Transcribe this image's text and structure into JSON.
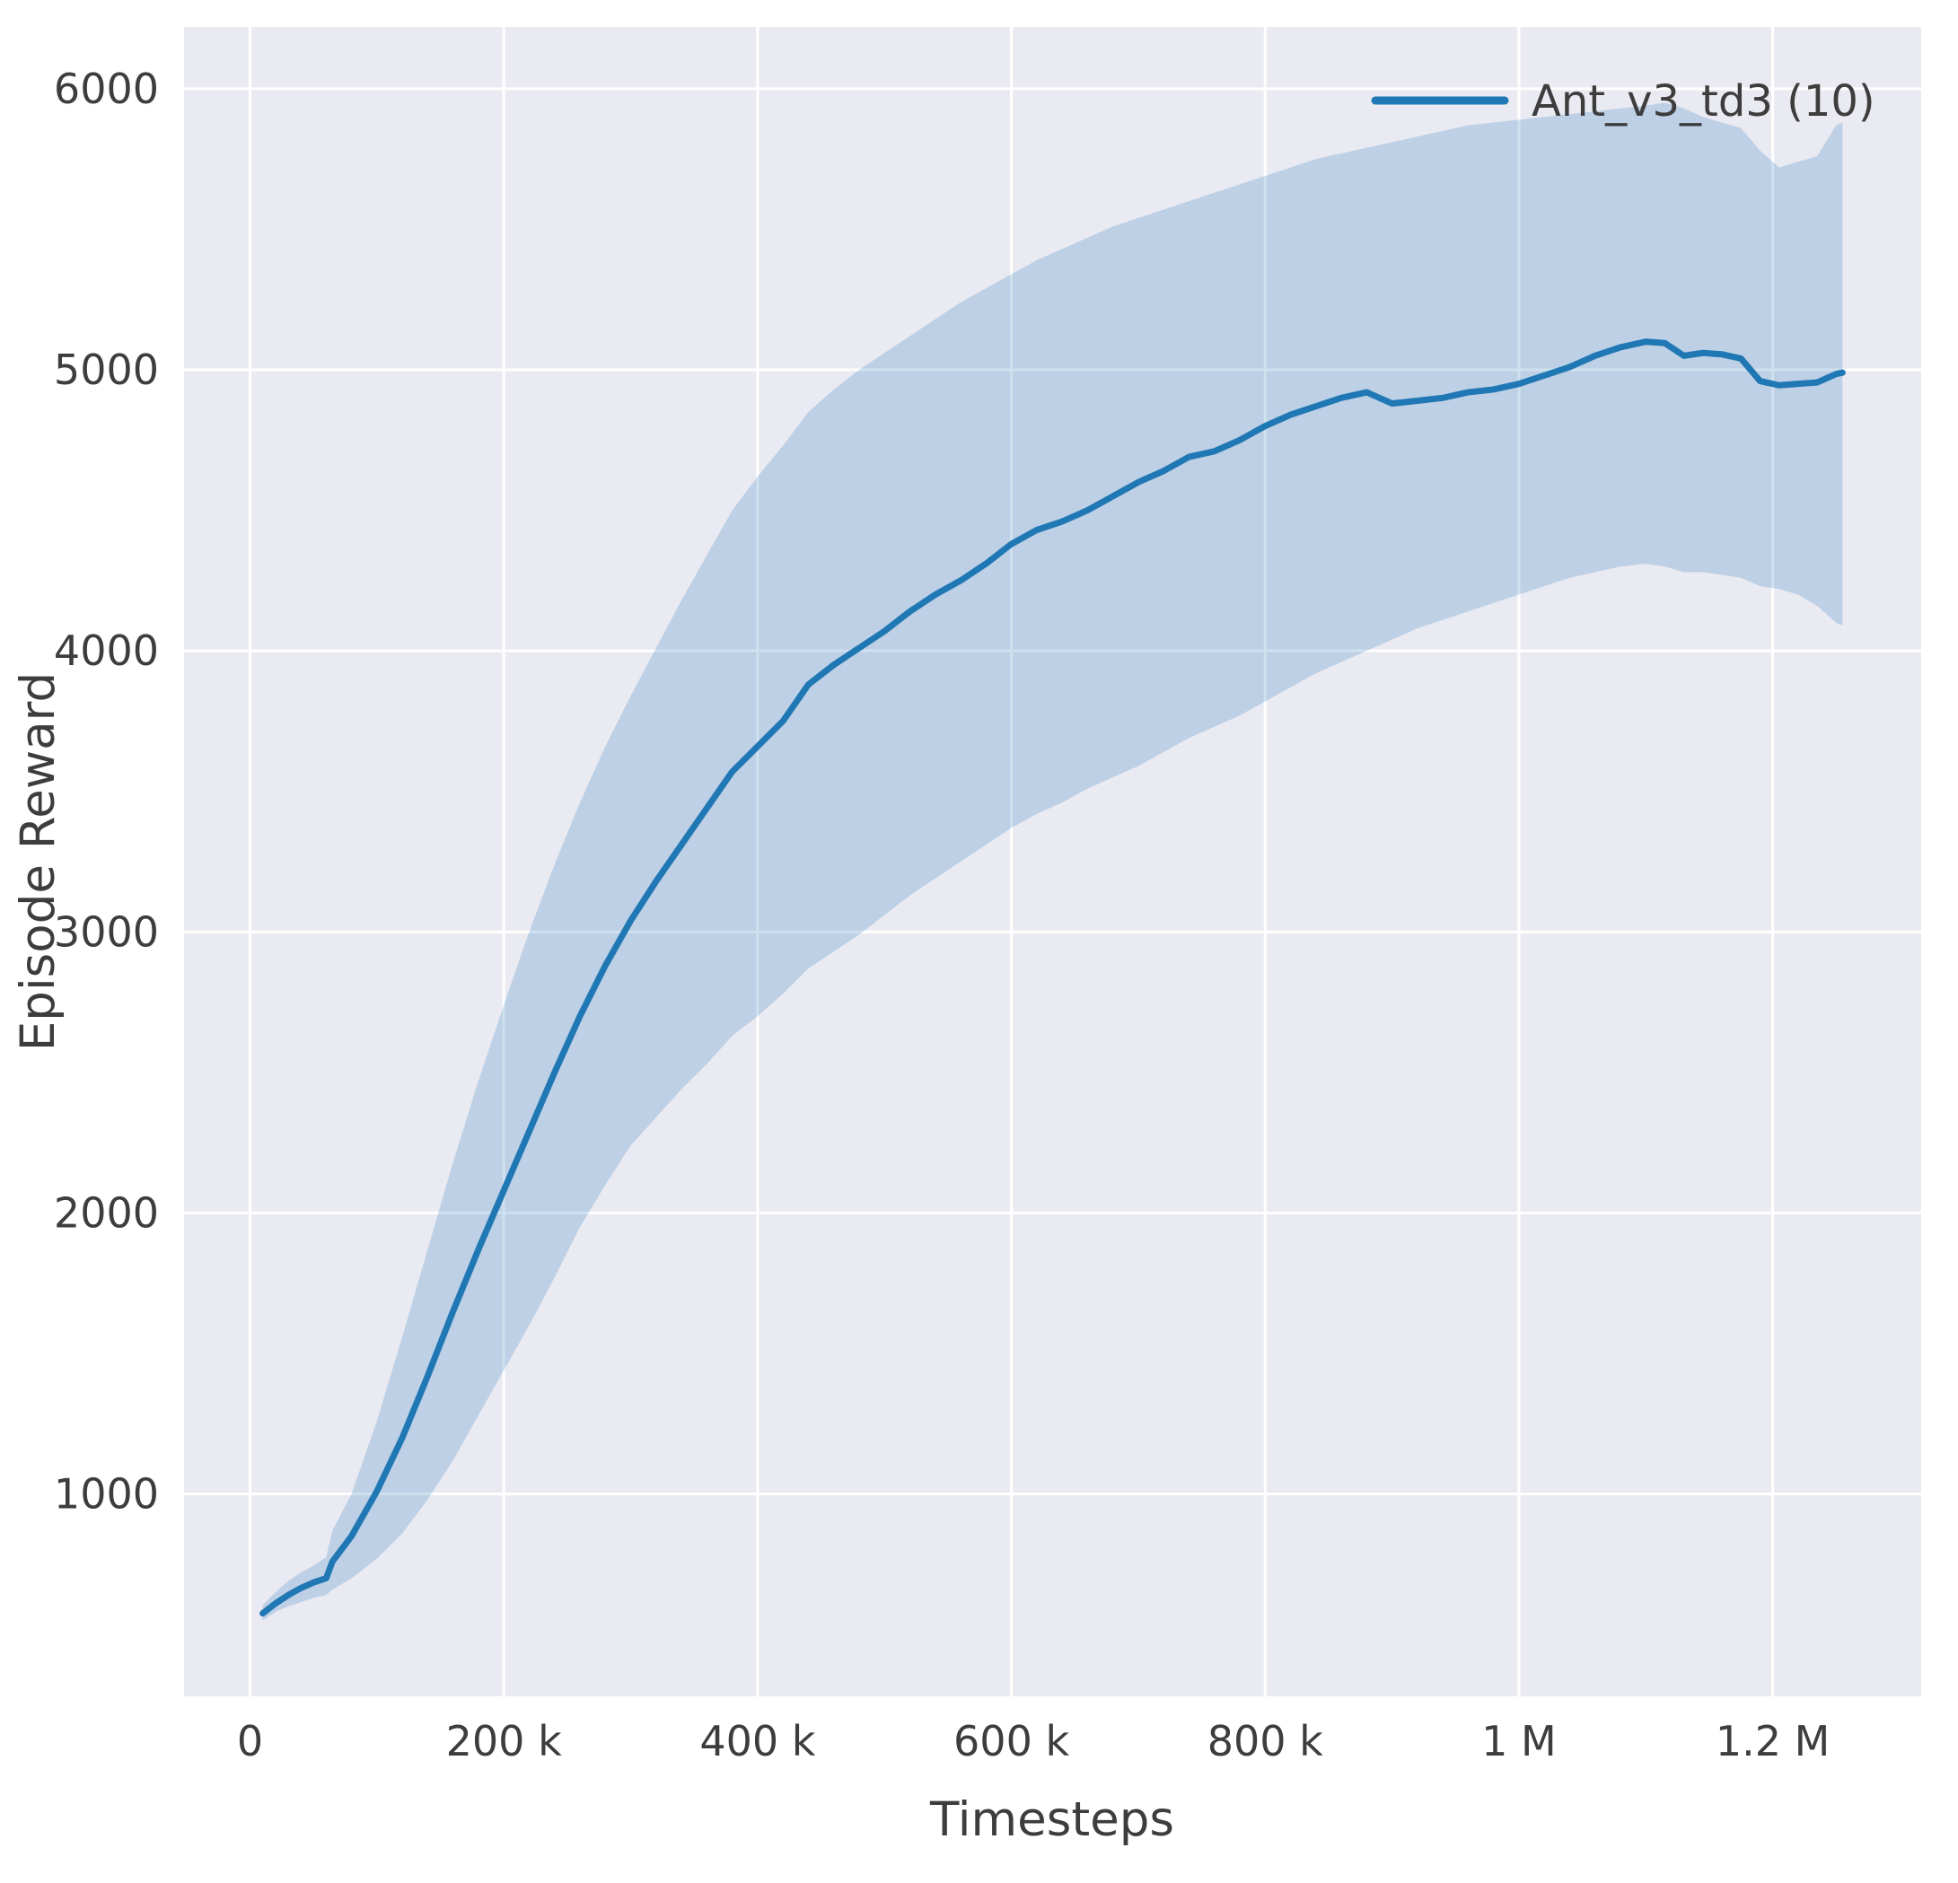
{
  "figure": {
    "background": "#ffffff",
    "axes_background": "#eaeaf2",
    "grid_color": "#ffffff",
    "text_color": "#3d3d3d"
  },
  "chart_data": {
    "type": "line",
    "title": "",
    "xlabel": "Timesteps",
    "ylabel": "Episode Reward",
    "grid": true,
    "legend": {
      "position": "upper right",
      "entries": [
        {
          "label": "Ant_v3_td3 (10)",
          "color": "#1f77b4"
        }
      ]
    },
    "xlim": [
      -52000,
      1317000
    ],
    "ylim": [
      280,
      6220
    ],
    "x_ticks": [
      {
        "value": 0,
        "label": "0"
      },
      {
        "value": 200000,
        "label": "200 k"
      },
      {
        "value": 400000,
        "label": "400 k"
      },
      {
        "value": 600000,
        "label": "600 k"
      },
      {
        "value": 800000,
        "label": "800 k"
      },
      {
        "value": 1000000,
        "label": "1 M"
      },
      {
        "value": 1200000,
        "label": "1.2 M"
      }
    ],
    "y_ticks": [
      {
        "value": 1000,
        "label": "1000"
      },
      {
        "value": 2000,
        "label": "2000"
      },
      {
        "value": 3000,
        "label": "3000"
      },
      {
        "value": 4000,
        "label": "4000"
      },
      {
        "value": 5000,
        "label": "5000"
      },
      {
        "value": 6000,
        "label": "6000"
      }
    ],
    "series": [
      {
        "name": "Ant_v3_td3 (10)",
        "color": "#1f77b4",
        "band_opacity": 0.22,
        "x": [
          10000,
          20000,
          30000,
          40000,
          50000,
          60000,
          65000,
          80000,
          100000,
          120000,
          140000,
          160000,
          180000,
          200000,
          220000,
          240000,
          260000,
          280000,
          300000,
          320000,
          340000,
          360000,
          380000,
          400000,
          420000,
          440000,
          460000,
          480000,
          500000,
          520000,
          540000,
          560000,
          580000,
          600000,
          620000,
          640000,
          660000,
          680000,
          700000,
          720000,
          740000,
          760000,
          780000,
          800000,
          820000,
          840000,
          860000,
          880000,
          900000,
          920000,
          940000,
          960000,
          980000,
          1000000,
          1020000,
          1040000,
          1060000,
          1080000,
          1100000,
          1115000,
          1130000,
          1145000,
          1160000,
          1175000,
          1190000,
          1205000,
          1220000,
          1235000,
          1250000,
          1255000
        ],
        "mean": [
          575,
          610,
          640,
          665,
          685,
          700,
          760,
          850,
          1010,
          1200,
          1420,
          1650,
          1870,
          2080,
          2290,
          2500,
          2700,
          2880,
          3040,
          3180,
          3310,
          3440,
          3570,
          3660,
          3750,
          3880,
          3950,
          4010,
          4070,
          4140,
          4200,
          4250,
          4310,
          4380,
          4430,
          4460,
          4500,
          4550,
          4600,
          4640,
          4690,
          4710,
          4750,
          4800,
          4840,
          4870,
          4900,
          4920,
          4880,
          4890,
          4900,
          4920,
          4930,
          4950,
          4980,
          5010,
          5050,
          5080,
          5100,
          5095,
          5050,
          5060,
          5055,
          5040,
          4960,
          4945,
          4950,
          4955,
          4985,
          4990
        ],
        "lower": [
          550,
          580,
          600,
          615,
          630,
          640,
          660,
          700,
          770,
          860,
          980,
          1120,
          1280,
          1440,
          1600,
          1770,
          1950,
          2100,
          2240,
          2340,
          2440,
          2530,
          2630,
          2700,
          2780,
          2870,
          2930,
          2990,
          3060,
          3130,
          3190,
          3250,
          3310,
          3370,
          3420,
          3460,
          3510,
          3550,
          3590,
          3640,
          3690,
          3730,
          3770,
          3820,
          3870,
          3920,
          3960,
          4000,
          4040,
          4080,
          4110,
          4140,
          4170,
          4200,
          4230,
          4260,
          4280,
          4300,
          4310,
          4300,
          4280,
          4280,
          4270,
          4260,
          4230,
          4220,
          4200,
          4160,
          4100,
          4090
        ],
        "upper": [
          605,
          650,
          690,
          720,
          745,
          775,
          870,
          1000,
          1260,
          1560,
          1870,
          2180,
          2470,
          2740,
          3000,
          3240,
          3460,
          3660,
          3840,
          4010,
          4180,
          4340,
          4500,
          4620,
          4730,
          4850,
          4930,
          5000,
          5060,
          5120,
          5180,
          5240,
          5290,
          5340,
          5390,
          5430,
          5470,
          5510,
          5540,
          5570,
          5600,
          5630,
          5660,
          5690,
          5720,
          5750,
          5770,
          5790,
          5810,
          5830,
          5850,
          5870,
          5880,
          5890,
          5900,
          5910,
          5920,
          5930,
          5940,
          5950,
          5930,
          5900,
          5880,
          5860,
          5780,
          5720,
          5740,
          5760,
          5870,
          5880
        ]
      }
    ]
  }
}
